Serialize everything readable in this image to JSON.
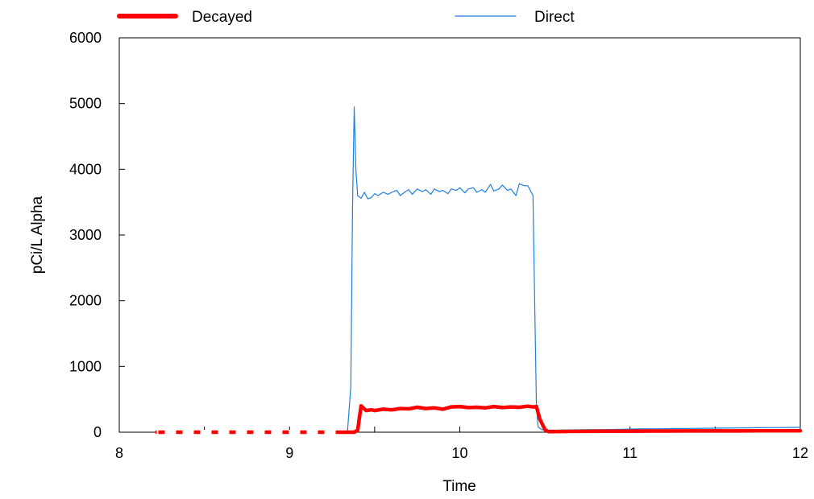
{
  "chart_data": {
    "type": "line",
    "xlabel": "Time",
    "ylabel": "pCi/L Alpha",
    "xlim": [
      8,
      12
    ],
    "ylim": [
      0,
      6000
    ],
    "x_ticks": [
      "8",
      "9",
      "10",
      "11",
      "12"
    ],
    "y_ticks": [
      "0",
      "1000",
      "2000",
      "3000",
      "4000",
      "5000",
      "6000"
    ],
    "grid": false,
    "legend_position": "top",
    "series": [
      {
        "name": "Decayed",
        "color": "#ff0000",
        "style": "thick",
        "x": [
          8.22,
          8.29,
          8.36,
          8.43,
          8.5,
          8.57,
          8.64,
          8.71,
          8.78,
          8.85,
          8.92,
          8.99,
          9.06,
          9.13,
          9.2,
          9.27,
          9.32,
          9.36,
          9.38,
          9.4,
          9.42,
          9.45,
          9.48,
          9.5,
          9.55,
          9.6,
          9.65,
          9.7,
          9.75,
          9.8,
          9.85,
          9.9,
          9.95,
          10.0,
          10.05,
          10.1,
          10.15,
          10.2,
          10.25,
          10.3,
          10.35,
          10.4,
          10.43,
          10.45,
          10.47,
          10.5,
          10.52,
          10.55,
          10.65,
          10.75,
          10.85,
          10.95,
          11.05,
          11.15,
          11.25,
          11.35,
          11.45,
          11.55,
          11.65,
          11.75,
          11.85,
          11.95,
          12.0
        ],
        "y": [
          0,
          0,
          0,
          0,
          0,
          0,
          0,
          0,
          0,
          0,
          0,
          0,
          0,
          0,
          0,
          0,
          0,
          0,
          0,
          30,
          400,
          330,
          340,
          330,
          350,
          340,
          360,
          355,
          380,
          360,
          370,
          350,
          385,
          390,
          375,
          380,
          370,
          390,
          375,
          385,
          380,
          395,
          385,
          390,
          200,
          40,
          10,
          10,
          12,
          14,
          15,
          16,
          17,
          18,
          18,
          19,
          20,
          20,
          20,
          21,
          21,
          22,
          22
        ]
      },
      {
        "name": "Direct",
        "color": "#1f7fdc",
        "style": "thin",
        "x": [
          8.22,
          9.3,
          9.34,
          9.36,
          9.37,
          9.38,
          9.39,
          9.4,
          9.42,
          9.44,
          9.46,
          9.48,
          9.5,
          9.52,
          9.55,
          9.58,
          9.6,
          9.63,
          9.65,
          9.68,
          9.7,
          9.72,
          9.75,
          9.78,
          9.8,
          9.83,
          9.85,
          9.88,
          9.9,
          9.93,
          9.95,
          9.98,
          10.0,
          10.03,
          10.05,
          10.08,
          10.1,
          10.13,
          10.15,
          10.18,
          10.2,
          10.23,
          10.25,
          10.28,
          10.3,
          10.33,
          10.35,
          10.38,
          10.4,
          10.43,
          10.44,
          10.45,
          10.46,
          10.48,
          10.5,
          10.55,
          10.65,
          10.75,
          10.85,
          10.95,
          11.05,
          11.15,
          11.25,
          11.35,
          11.45,
          11.55,
          11.65,
          11.75,
          11.85,
          11.95,
          12.0
        ],
        "y": [
          0,
          0,
          0,
          700,
          3400,
          4950,
          4000,
          3600,
          3560,
          3650,
          3550,
          3570,
          3630,
          3600,
          3650,
          3620,
          3650,
          3680,
          3600,
          3660,
          3690,
          3620,
          3700,
          3660,
          3690,
          3620,
          3700,
          3660,
          3680,
          3630,
          3700,
          3680,
          3720,
          3640,
          3700,
          3720,
          3650,
          3690,
          3650,
          3770,
          3670,
          3700,
          3760,
          3680,
          3700,
          3600,
          3780,
          3750,
          3750,
          3600,
          2000,
          400,
          80,
          40,
          30,
          30,
          35,
          38,
          40,
          45,
          50,
          52,
          55,
          58,
          60,
          63,
          65,
          68,
          70,
          72,
          75
        ]
      }
    ]
  }
}
